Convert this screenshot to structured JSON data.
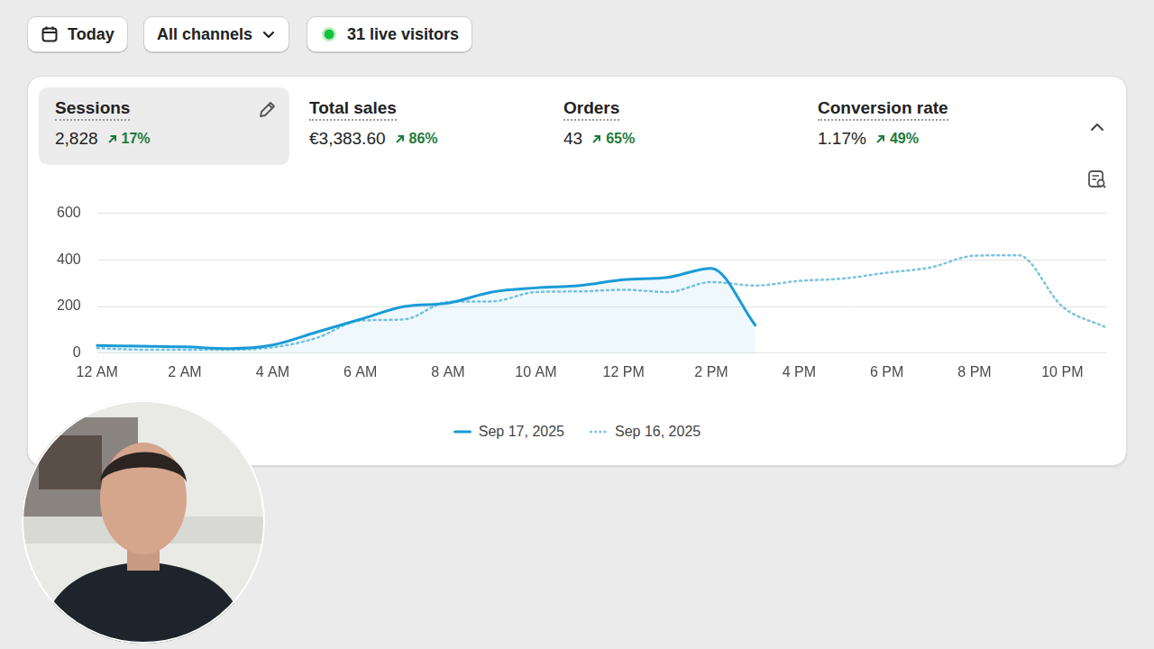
{
  "toolbar": {
    "date": "Today",
    "channel": "All channels",
    "live": "31 live visitors"
  },
  "metrics": [
    {
      "label": "Sessions",
      "value": "2,828",
      "change": "17%"
    },
    {
      "label": "Total sales",
      "value": "€3,383.60",
      "change": "86%"
    },
    {
      "label": "Orders",
      "value": "43",
      "change": "65%"
    },
    {
      "label": "Conversion rate",
      "value": "1.17%",
      "change": "49%"
    }
  ],
  "chart_data": {
    "type": "line",
    "categories": [
      "12 AM",
      null,
      "2 AM",
      null,
      "4 AM",
      null,
      "6 AM",
      null,
      "8 AM",
      null,
      "10 AM",
      null,
      "12 PM",
      null,
      "2 PM",
      null,
      "4 PM",
      null,
      "6 PM",
      null,
      "8 PM",
      null,
      "10 PM",
      null
    ],
    "series": [
      {
        "name": "Sep 17, 2025",
        "color": "#1a9bd6",
        "line_style": "solid",
        "values": [
          33,
          30,
          27,
          20,
          35,
          90,
          145,
          200,
          215,
          262,
          280,
          290,
          315,
          325,
          364,
          120,
          null,
          null,
          null,
          null,
          null,
          null,
          null,
          null
        ]
      },
      {
        "name": "Sep 16, 2025",
        "color": "#7cc4de",
        "line_style": "dotted",
        "values": [
          22,
          15,
          15,
          15,
          25,
          65,
          140,
          145,
          220,
          222,
          262,
          265,
          272,
          262,
          305,
          290,
          310,
          320,
          345,
          368,
          418,
          420,
          200,
          110
        ]
      }
    ],
    "ylim": [
      0,
      600
    ],
    "yticks": [
      0,
      200,
      400,
      600
    ],
    "grid": true,
    "legend": "bottom"
  }
}
